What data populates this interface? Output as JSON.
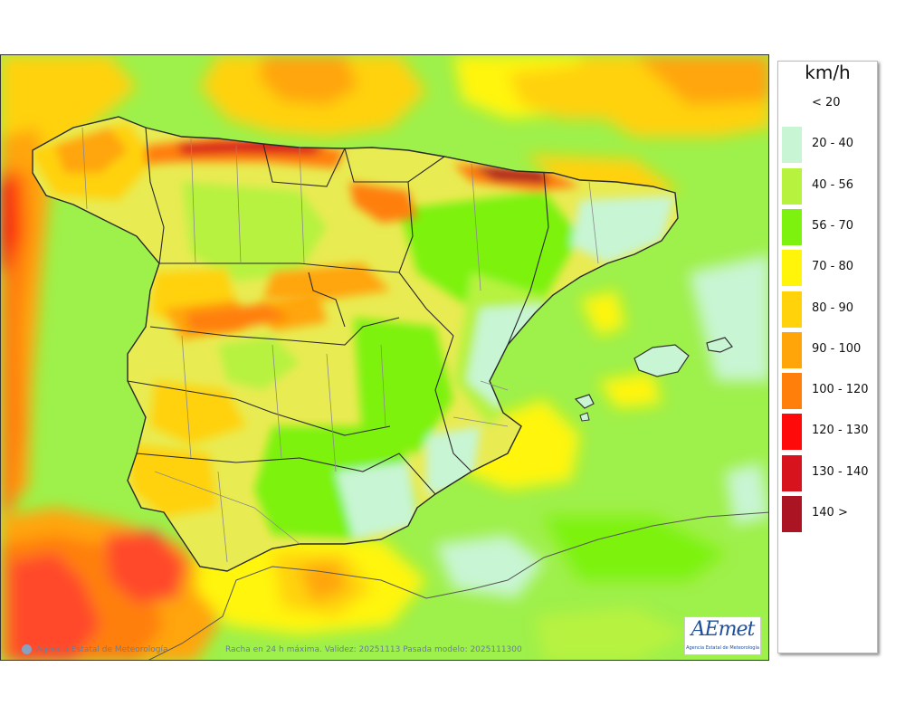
{
  "legend": {
    "unit": "km/h",
    "classes": [
      {
        "label": "< 20",
        "color": "#ffffff"
      },
      {
        "label": "20 - 40",
        "color": "#c8f5d3"
      },
      {
        "label": "40 - 56",
        "color": "#b7f23f"
      },
      {
        "label": "56 - 70",
        "color": "#7df20e"
      },
      {
        "label": "70 - 80",
        "color": "#fff50a"
      },
      {
        "label": "80 - 90",
        "color": "#ffd20a"
      },
      {
        "label": "90 - 100",
        "color": "#ffa50a"
      },
      {
        "label": "100 - 120",
        "color": "#ff7f0a"
      },
      {
        "label": "120 - 130",
        "color": "#ff0a0a"
      },
      {
        "label": "130 - 140",
        "color": "#d7141e"
      },
      {
        "label": "140 >",
        "color": "#aa1423"
      }
    ]
  },
  "footer": {
    "organization": "Agencia Estatal de Meteorología",
    "caption": "Racha en 24 h máxima. Validez: 20251113 Pasada modelo: 2025111300"
  },
  "logo": {
    "mark": "AEmet",
    "subtitle": "Agencia Estatal de Meteorología"
  },
  "map": {
    "ocean_color": "#9ef04a",
    "land_color": "#e9eb52",
    "border_color": "#333333",
    "province_color": "#8a8a8a"
  }
}
